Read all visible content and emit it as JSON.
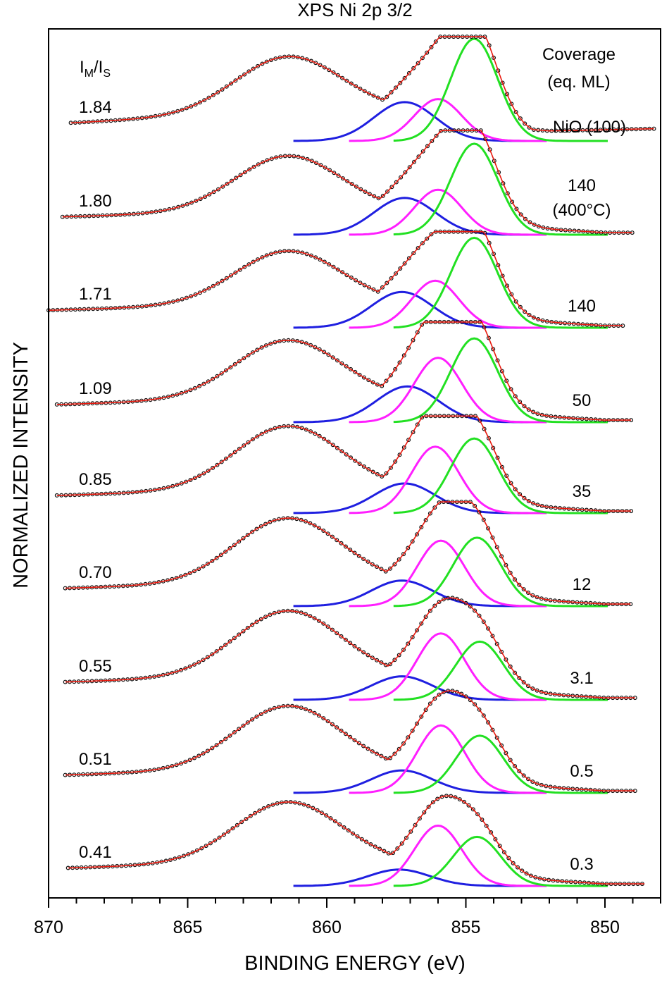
{
  "chart_data": {
    "type": "line",
    "title": "XPS Ni 2p 3/2",
    "xlabel": "BINDING ENERGY (eV)",
    "ylabel": "NORMALIZED INTENSITY",
    "xlim": [
      870,
      848
    ],
    "x_reversed": true,
    "x_ticks": [
      870,
      865,
      860,
      855,
      850
    ],
    "grid": false,
    "ratio_header": {
      "base": "I",
      "sub1": "M",
      "sep": "/I",
      "sub2": "S"
    },
    "coverage_header": [
      "Coverage",
      "(eq. ML)"
    ],
    "spectra": [
      {
        "ratio": "1.84",
        "coverage": [
          "NiO (100)"
        ],
        "x_start": 869.2,
        "x_end": 848.2,
        "baseline_start": 0.0,
        "baseline_end": 0.12,
        "main": 1.0,
        "sat_height": 0.55,
        "blue": {
          "center": 857.2,
          "height": 0.38
        },
        "magenta": {
          "center": 856.0,
          "height": 0.41
        },
        "green": {
          "center": 854.7,
          "height": 1.0
        }
      },
      {
        "ratio": "1.80",
        "coverage": [
          "140",
          "(400°C)"
        ],
        "x_start": 869.5,
        "x_end": 849.0,
        "baseline_start": 0.0,
        "baseline_end": 0.0,
        "main": 1.0,
        "sat_height": 0.54,
        "blue": {
          "center": 857.2,
          "height": 0.36
        },
        "magenta": {
          "center": 856.0,
          "height": 0.44
        },
        "green": {
          "center": 854.7,
          "height": 0.89
        }
      },
      {
        "ratio": "1.71",
        "coverage": [
          "140"
        ],
        "x_start": 870.0,
        "x_end": 849.3,
        "baseline_start": 0.0,
        "baseline_end": 0.0,
        "main": 0.92,
        "sat_height": 0.52,
        "blue": {
          "center": 857.3,
          "height": 0.35
        },
        "magenta": {
          "center": 856.1,
          "height": 0.46
        },
        "green": {
          "center": 854.7,
          "height": 0.88
        }
      },
      {
        "ratio": "1.09",
        "coverage": [
          "50"
        ],
        "x_start": 869.7,
        "x_end": 849.0,
        "baseline_start": 0.0,
        "baseline_end": 0.0,
        "main": 0.96,
        "sat_height": 0.57,
        "blue": {
          "center": 857.1,
          "height": 0.35
        },
        "magenta": {
          "center": 856.0,
          "height": 0.63
        },
        "green": {
          "center": 854.7,
          "height": 0.82
        }
      },
      {
        "ratio": "0.85",
        "coverage": [
          "35"
        ],
        "x_start": 869.7,
        "x_end": 849.0,
        "baseline_start": 0.0,
        "baseline_end": 0.0,
        "main": 0.93,
        "sat_height": 0.62,
        "blue": {
          "center": 857.2,
          "height": 0.29
        },
        "magenta": {
          "center": 856.1,
          "height": 0.65
        },
        "green": {
          "center": 854.7,
          "height": 0.73
        }
      },
      {
        "ratio": "0.70",
        "coverage": [
          "12"
        ],
        "x_start": 869.4,
        "x_end": 849.0,
        "baseline_start": 0.0,
        "baseline_end": 0.0,
        "main": 1.0,
        "sat_height": 0.63,
        "blue": {
          "center": 857.3,
          "height": 0.25
        },
        "magenta": {
          "center": 855.9,
          "height": 0.64
        },
        "green": {
          "center": 854.6,
          "height": 0.67
        }
      },
      {
        "ratio": "0.55",
        "coverage": [
          "3.1"
        ],
        "x_start": 869.4,
        "x_end": 848.9,
        "baseline_start": 0.0,
        "baseline_end": 0.0,
        "main": 1.05,
        "sat_height": 0.64,
        "blue": {
          "center": 857.3,
          "height": 0.23
        },
        "magenta": {
          "center": 855.9,
          "height": 0.65
        },
        "green": {
          "center": 854.5,
          "height": 0.57
        }
      },
      {
        "ratio": "0.51",
        "coverage": [
          "0.5"
        ],
        "x_start": 869.4,
        "x_end": 848.9,
        "baseline_start": 0.0,
        "baseline_end": 0.0,
        "main": 1.05,
        "sat_height": 0.62,
        "blue": {
          "center": 857.3,
          "height": 0.22
        },
        "magenta": {
          "center": 855.9,
          "height": 0.66
        },
        "green": {
          "center": 854.5,
          "height": 0.56
        }
      },
      {
        "ratio": "0.41",
        "coverage": [
          "0.3"
        ],
        "x_start": 869.3,
        "x_end": 848.5,
        "baseline_start": 0.0,
        "baseline_end": 0.0,
        "main": 1.0,
        "sat_height": 0.59,
        "blue": {
          "center": 857.4,
          "height": 0.16
        },
        "magenta": {
          "center": 856.0,
          "height": 0.59
        },
        "green": {
          "center": 854.6,
          "height": 0.48
        }
      }
    ],
    "component_colors": {
      "blue": "#1f1fe0",
      "magenta": "#ff1fff",
      "green": "#22e022",
      "fit": "#e8170c",
      "data": "#111111"
    }
  }
}
